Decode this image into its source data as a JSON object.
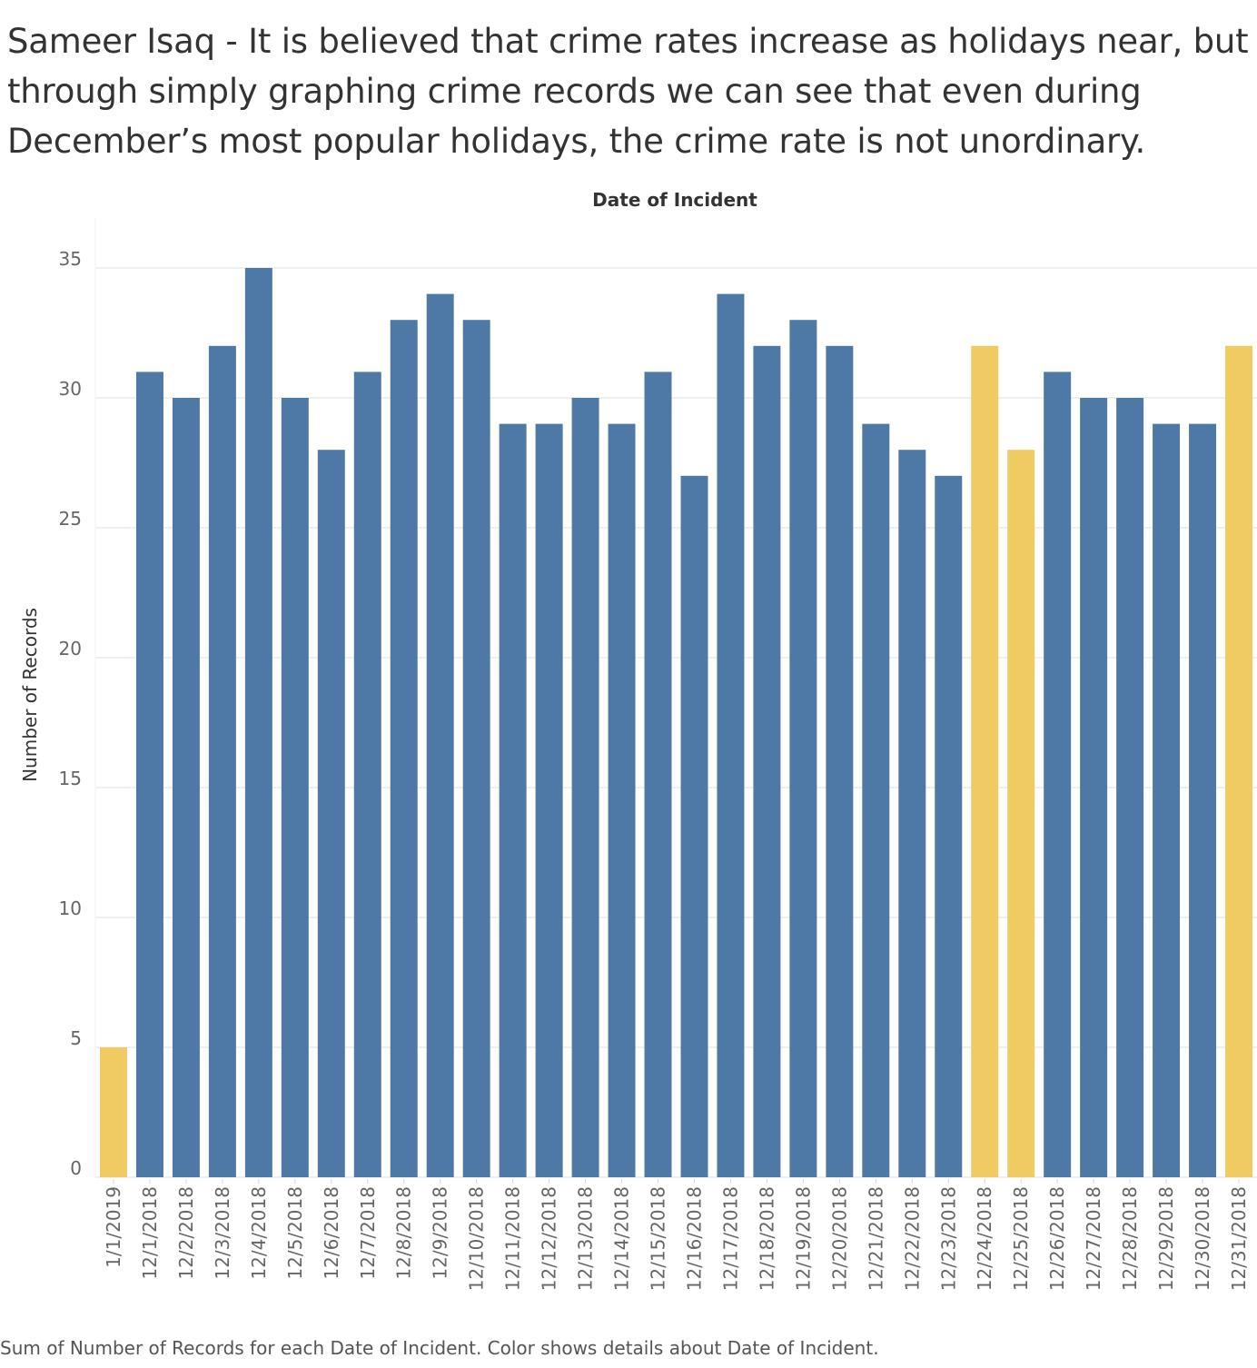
{
  "header": {
    "title": "Sameer Isaq - It is believed that crime rates increase as holidays near, but through simply graphing crime records we can see that even during December’s most popular holidays, the crime rate is not unordinary."
  },
  "footer": {
    "caption": "Sum of Number of Records for each Date of Incident.  Color shows details about Date of Incident."
  },
  "colors": {
    "regular": "#4e79a7",
    "holiday": "#f0cb62",
    "gridline": "#ececec"
  },
  "chart_data": {
    "type": "bar",
    "title": "",
    "xlabel": "Date of Incident",
    "ylabel": "Number of Records",
    "ylim": [
      0,
      37
    ],
    "yticks": [
      0,
      5,
      10,
      15,
      20,
      25,
      30,
      35
    ],
    "grid": true,
    "categories": [
      "1/1/2019",
      "12/1/2018",
      "12/2/2018",
      "12/3/2018",
      "12/4/2018",
      "12/5/2018",
      "12/6/2018",
      "12/7/2018",
      "12/8/2018",
      "12/9/2018",
      "12/10/2018",
      "12/11/2018",
      "12/12/2018",
      "12/13/2018",
      "12/14/2018",
      "12/15/2018",
      "12/16/2018",
      "12/17/2018",
      "12/18/2018",
      "12/19/2018",
      "12/20/2018",
      "12/21/2018",
      "12/22/2018",
      "12/23/2018",
      "12/24/2018",
      "12/25/2018",
      "12/26/2018",
      "12/27/2018",
      "12/28/2018",
      "12/29/2018",
      "12/30/2018",
      "12/31/2018"
    ],
    "values": [
      5,
      31,
      30,
      32,
      35,
      30,
      28,
      31,
      33,
      34,
      33,
      29,
      29,
      30,
      29,
      31,
      27,
      34,
      32,
      33,
      32,
      29,
      28,
      27,
      32,
      28,
      31,
      30,
      30,
      29,
      29,
      32
    ],
    "holiday": [
      true,
      false,
      false,
      false,
      false,
      false,
      false,
      false,
      false,
      false,
      false,
      false,
      false,
      false,
      false,
      false,
      false,
      false,
      false,
      false,
      false,
      false,
      false,
      false,
      true,
      true,
      false,
      false,
      false,
      false,
      false,
      true
    ]
  }
}
